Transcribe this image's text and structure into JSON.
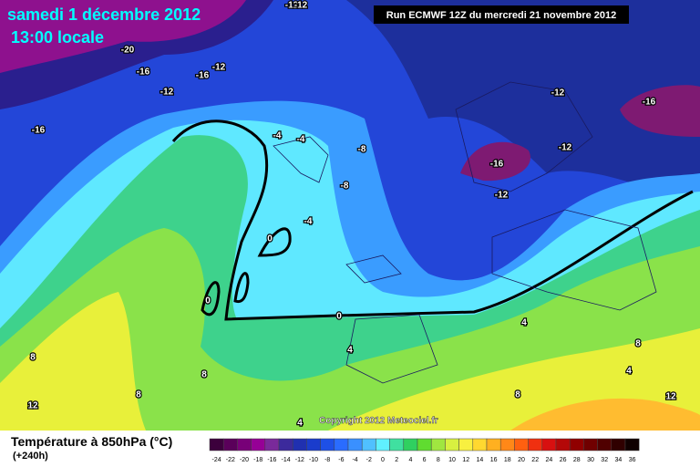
{
  "header": {
    "date": "samedi 1 décembre 2012",
    "time": "13:00 locale",
    "run": "Run ECMWF 12Z du mercredi 21 novembre 2012"
  },
  "map": {
    "contour_labels": [
      -12,
      -12,
      -20,
      -16,
      -16,
      -12,
      -12,
      -16,
      -4,
      -4,
      -8,
      -8,
      -4,
      0,
      0,
      0,
      -12,
      -16,
      -12,
      -16,
      -12,
      4,
      4,
      8,
      8,
      8,
      12,
      8,
      4,
      8,
      12,
      4
    ],
    "copyright": "Copyright 2012 Meteociel.fr"
  },
  "legend": {
    "title": "Température à 850hPa (°C)",
    "lead": "(+240h)",
    "scale": [
      -24,
      -22,
      -20,
      -18,
      -16,
      -14,
      -12,
      -10,
      -8,
      -6,
      -4,
      -2,
      0,
      2,
      4,
      6,
      8,
      10,
      12,
      14,
      16,
      18,
      20,
      22,
      24,
      26,
      28,
      30,
      32,
      34,
      36
    ]
  }
}
